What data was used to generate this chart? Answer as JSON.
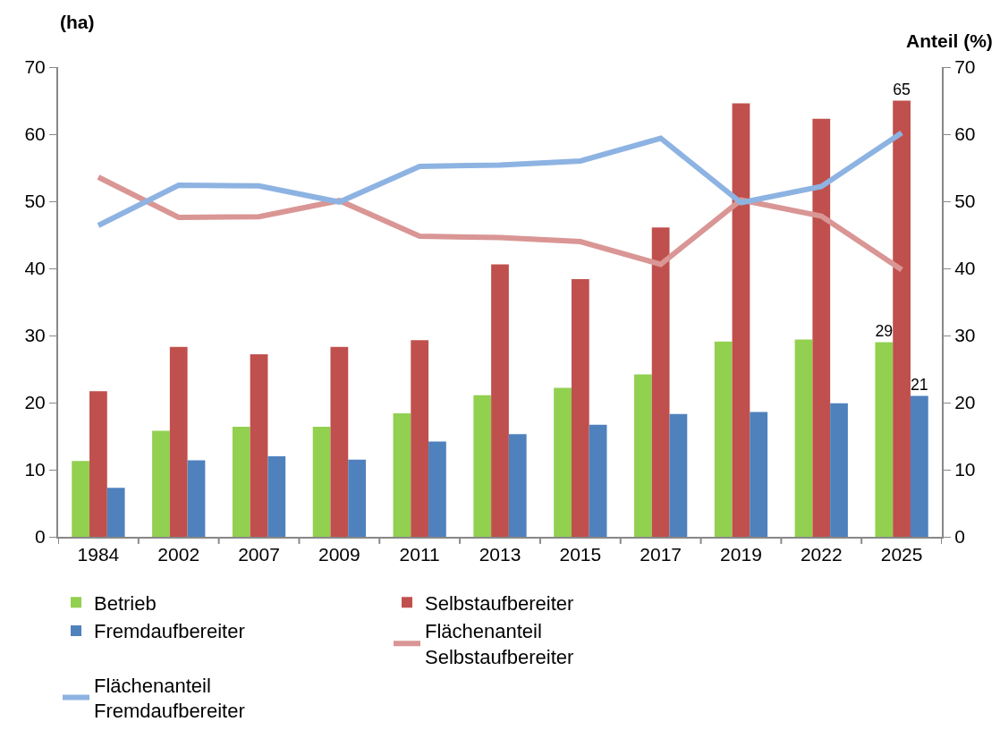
{
  "chart_data": {
    "type": "bar",
    "ylabel": "(ha)",
    "y2label": "Anteil (%)",
    "categories": [
      "1984",
      "2002",
      "2007",
      "2009",
      "2011",
      "2013",
      "2015",
      "2017",
      "2019",
      "2022",
      "2025"
    ],
    "series": [
      {
        "name": "Betrieb",
        "color": "#92d050",
        "values": [
          11.3,
          15.8,
          16.4,
          16.4,
          18.4,
          21.1,
          22.2,
          24.2,
          29.1,
          29.4,
          29
        ],
        "value_labels": [
          null,
          null,
          null,
          null,
          null,
          null,
          null,
          null,
          null,
          null,
          "29"
        ]
      },
      {
        "name": "Selbstaufbereiter",
        "color": "#c0504d",
        "values": [
          21.7,
          28.3,
          27.2,
          28.3,
          29.3,
          40.6,
          38.4,
          46.1,
          64.6,
          62.3,
          65
        ],
        "value_labels": [
          null,
          null,
          null,
          null,
          null,
          null,
          null,
          null,
          null,
          null,
          "65"
        ]
      },
      {
        "name": "Fremdaufbereiter",
        "color": "#4f81bd",
        "values": [
          7.3,
          11.4,
          12.0,
          11.5,
          14.2,
          15.3,
          16.7,
          18.3,
          18.6,
          19.9,
          21
        ],
        "value_labels": [
          null,
          null,
          null,
          null,
          null,
          null,
          null,
          null,
          null,
          null,
          "21"
        ]
      },
      {
        "name": "Flächenanteil\nSelbstaufbereiter",
        "type": "line",
        "axis": "y2",
        "color": "#d99694",
        "values": [
          53.6,
          47.6,
          47.7,
          50.1,
          44.8,
          44.6,
          44.0,
          40.6,
          50.2,
          47.8,
          39.8
        ]
      },
      {
        "name": "Flächenanteil\nFremdaufbereiter",
        "type": "line",
        "axis": "y2",
        "color": "#8db3e2",
        "values": [
          46.4,
          52.4,
          52.3,
          49.9,
          55.2,
          55.4,
          56.0,
          59.4,
          49.8,
          52.2,
          60.2
        ]
      }
    ],
    "ylim": [
      0,
      70
    ],
    "yticks": [
      0,
      10,
      20,
      30,
      40,
      50,
      60,
      70
    ],
    "y2lim": [
      0,
      70
    ],
    "y2ticks": [
      0,
      10,
      20,
      30,
      40,
      50,
      60,
      70
    ],
    "legend": "bottom",
    "marker": "none",
    "line_style": "solid"
  }
}
